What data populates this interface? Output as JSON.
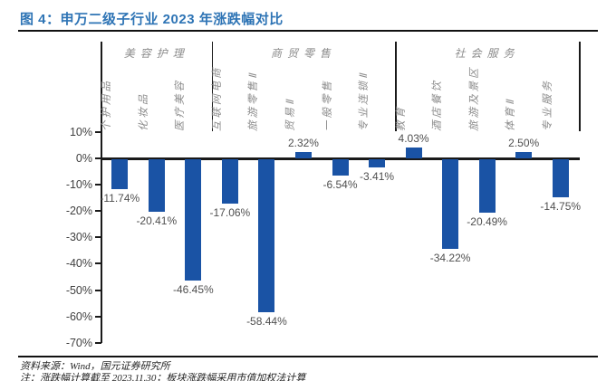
{
  "title": "图 4：申万二级子行业 2023 年涨跌幅对比",
  "source_line": "资料来源：Wind，国元证券研究所",
  "note_line": "注：涨跌幅计算截至 2023.11.30；板块涨跌幅采用市值加权法计算",
  "colors": {
    "title_blue": "#2E74B5",
    "bar_blue": "#1A53A5",
    "axis_line": "#1a1a1a",
    "tick_label": "#404040",
    "value_label": "#4f4f4f",
    "group_label": "#8c8c8c",
    "rule": "#111111"
  },
  "chart_data": {
    "type": "bar",
    "title": "申万二级子行业 2023 年涨跌幅对比",
    "unit": "%",
    "ylim": [
      -70,
      10
    ],
    "y_ticks": [
      10,
      0,
      -10,
      -20,
      -30,
      -40,
      -50,
      -60,
      -70
    ],
    "y_tick_labels": [
      "10%",
      "0%",
      "-10%",
      "-20%",
      "-30%",
      "-40%",
      "-50%",
      "-60%",
      "-70%"
    ],
    "grid": false,
    "legend": false,
    "groups": [
      {
        "name": "美容护理",
        "bars": [
          {
            "category": "个护用品",
            "value": -11.74,
            "label": "-11.74%"
          },
          {
            "category": "化妆品",
            "value": -20.41,
            "label": "-20.41%"
          },
          {
            "category": "医疗美容",
            "value": -46.45,
            "label": "-46.45%"
          }
        ]
      },
      {
        "name": "商贸零售",
        "bars": [
          {
            "category": "互联网电商",
            "value": -17.06,
            "label": "-17.06%"
          },
          {
            "category": "旅游零售Ⅱ",
            "value": -58.44,
            "label": "-58.44%"
          },
          {
            "category": "贸易Ⅱ",
            "value": 2.32,
            "label": "2.32%"
          },
          {
            "category": "一般零售",
            "value": -6.54,
            "label": "-6.54%"
          },
          {
            "category": "专业连锁Ⅱ",
            "value": -3.41,
            "label": "-3.41%"
          }
        ]
      },
      {
        "name": "社会服务",
        "bars": [
          {
            "category": "教育",
            "value": 4.03,
            "label": "4.03%"
          },
          {
            "category": "酒店餐饮",
            "value": -34.22,
            "label": "-34.22%"
          },
          {
            "category": "旅游及景区",
            "value": -20.49,
            "label": "-20.49%"
          },
          {
            "category": "体育Ⅱ",
            "value": 2.5,
            "label": "2.50%"
          },
          {
            "category": "专业服务",
            "value": -14.75,
            "label": "-14.75%"
          }
        ]
      }
    ]
  }
}
